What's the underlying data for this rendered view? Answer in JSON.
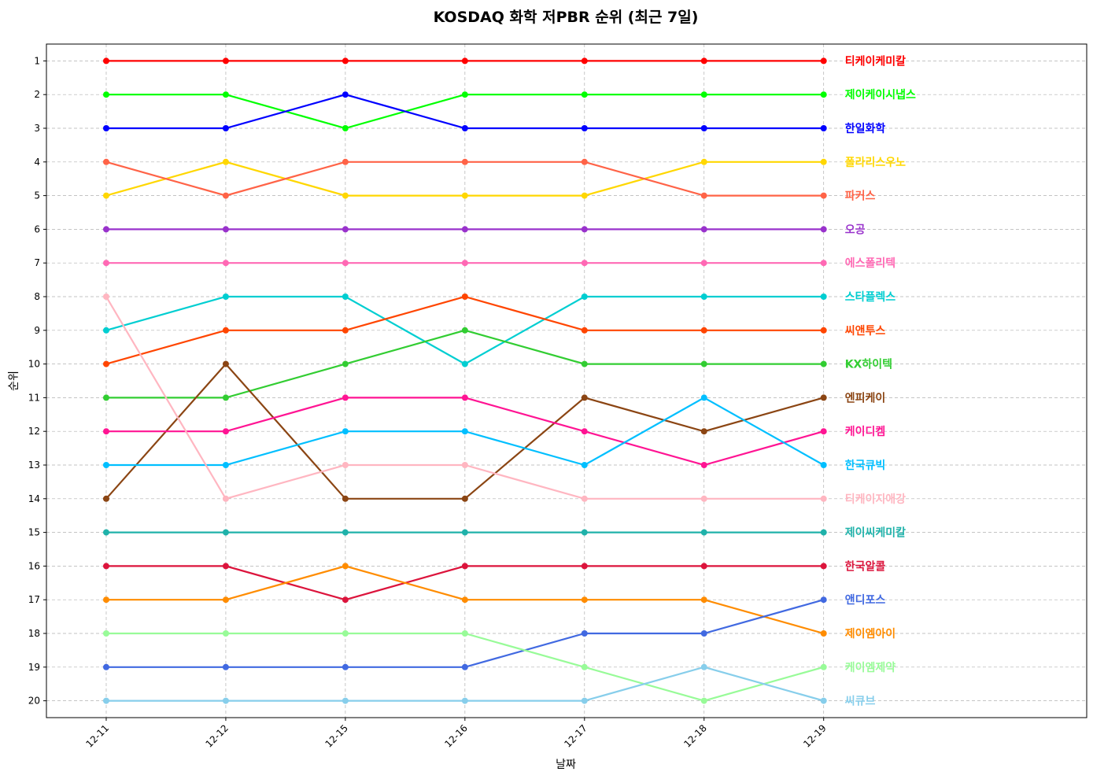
{
  "chart_data": {
    "type": "line",
    "title": "KOSDAQ 화학 저PBR 순위 (최근 7일)",
    "xlabel": "날짜",
    "ylabel": "순위",
    "x": [
      "12-11",
      "12-12",
      "12-15",
      "12-16",
      "12-17",
      "12-18",
      "12-19"
    ],
    "yticks": [
      1,
      2,
      3,
      4,
      5,
      6,
      7,
      8,
      9,
      10,
      11,
      12,
      13,
      14,
      15,
      16,
      17,
      18,
      19,
      20
    ],
    "ylim": [
      20.5,
      0.5
    ],
    "y_inverted": true,
    "grid": true,
    "series": [
      {
        "name": "티케이케미칼",
        "color": "#ff0000",
        "values": [
          1,
          1,
          1,
          1,
          1,
          1,
          1
        ]
      },
      {
        "name": "제이케이시냅스",
        "color": "#00ff00",
        "values": [
          2,
          2,
          3,
          2,
          2,
          2,
          2
        ]
      },
      {
        "name": "한일화학",
        "color": "#0000ff",
        "values": [
          3,
          3,
          2,
          3,
          3,
          3,
          3
        ]
      },
      {
        "name": "폴라리스우노",
        "color": "#ffd700",
        "values": [
          5,
          4,
          5,
          5,
          5,
          4,
          4
        ]
      },
      {
        "name": "파커스",
        "color": "#ff6347",
        "values": [
          4,
          5,
          4,
          4,
          4,
          5,
          5
        ]
      },
      {
        "name": "오공",
        "color": "#9932cc",
        "values": [
          6,
          6,
          6,
          6,
          6,
          6,
          6
        ]
      },
      {
        "name": "에스폴리텍",
        "color": "#ff69b4",
        "values": [
          7,
          7,
          7,
          7,
          7,
          7,
          7
        ]
      },
      {
        "name": "스타플렉스",
        "color": "#00ced1",
        "values": [
          9,
          8,
          8,
          10,
          8,
          8,
          8
        ]
      },
      {
        "name": "씨앤투스",
        "color": "#ff4500",
        "values": [
          10,
          9,
          9,
          8,
          9,
          9,
          9
        ]
      },
      {
        "name": "KX하이텍",
        "color": "#32cd32",
        "values": [
          11,
          11,
          10,
          9,
          10,
          10,
          10
        ]
      },
      {
        "name": "엔피케이",
        "color": "#8b4513",
        "values": [
          14,
          10,
          14,
          14,
          11,
          12,
          11
        ]
      },
      {
        "name": "케이디켐",
        "color": "#ff1493",
        "values": [
          12,
          12,
          11,
          11,
          12,
          13,
          12
        ]
      },
      {
        "name": "한국큐빅",
        "color": "#00bfff",
        "values": [
          13,
          13,
          12,
          12,
          13,
          11,
          13
        ]
      },
      {
        "name": "티케이지애강",
        "color": "#ffb6c1",
        "values": [
          8,
          14,
          13,
          13,
          14,
          14,
          14
        ]
      },
      {
        "name": "제이씨케미칼",
        "color": "#20b2aa",
        "values": [
          15,
          15,
          15,
          15,
          15,
          15,
          15
        ]
      },
      {
        "name": "한국알콜",
        "color": "#dc143c",
        "values": [
          16,
          16,
          17,
          16,
          16,
          16,
          16
        ]
      },
      {
        "name": "제이엠아이",
        "color": "#ff8c00",
        "values": [
          17,
          17,
          16,
          17,
          17,
          17,
          18
        ]
      },
      {
        "name": "앤디포스",
        "color": "#4169e1",
        "values": [
          19,
          19,
          19,
          19,
          18,
          18,
          17
        ]
      },
      {
        "name": "케이엠제약",
        "color": "#98fb98",
        "values": [
          18,
          18,
          18,
          18,
          19,
          20,
          19
        ]
      },
      {
        "name": "씨큐브",
        "color": "#87ceeb",
        "values": [
          20,
          20,
          20,
          20,
          20,
          19,
          20
        ]
      }
    ]
  }
}
